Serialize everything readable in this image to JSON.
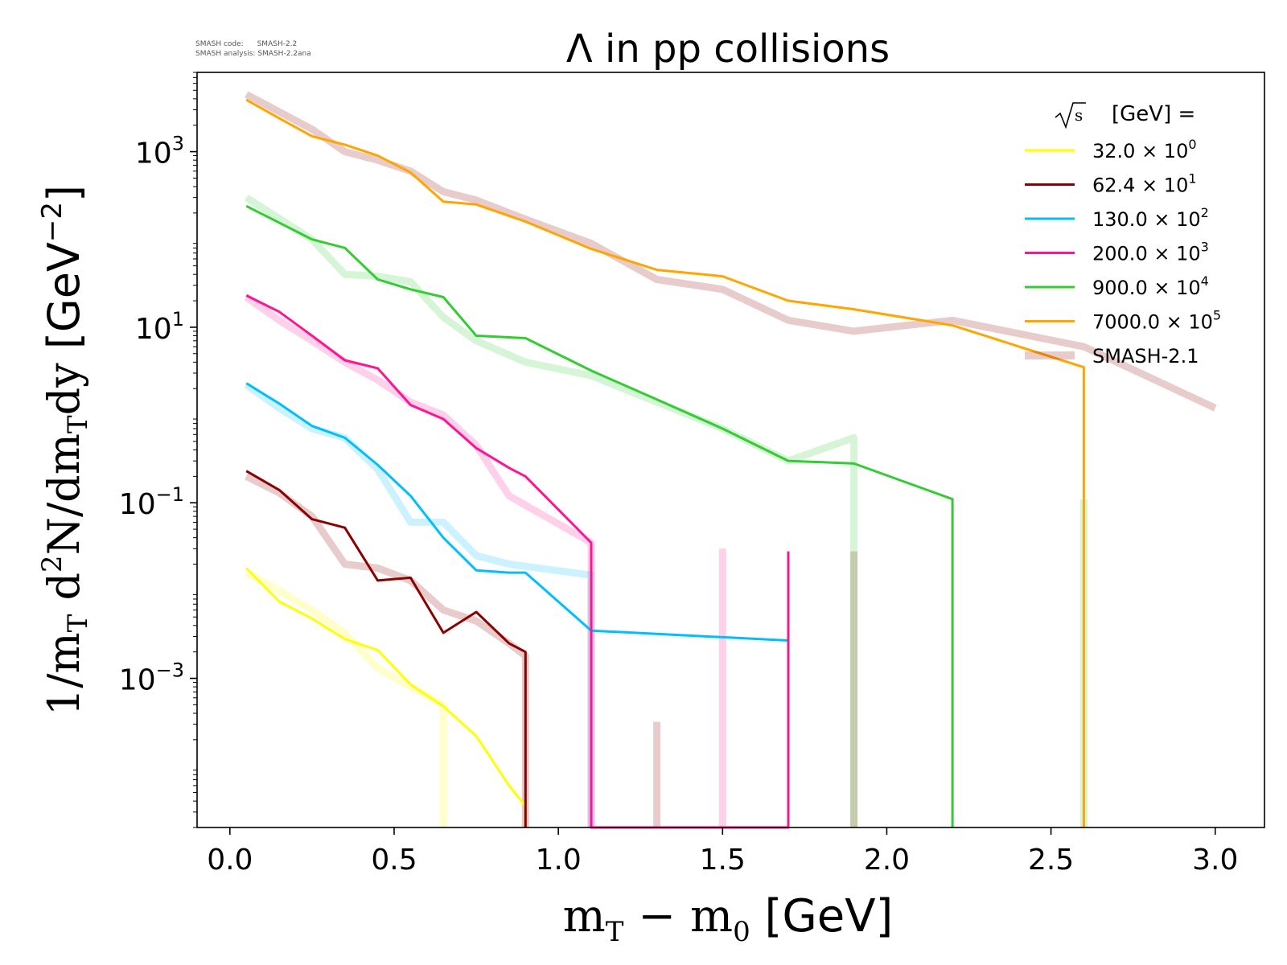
{
  "meta": {
    "code_label": "SMASH code:",
    "code_value": "SMASH-2.2",
    "analysis_label": "SMASH analysis:",
    "analysis_value": "SMASH-2.2ana"
  },
  "chart_data": {
    "type": "line",
    "title": "Λ in pp collisions",
    "xlabel": "m_T − m_0 [GeV]",
    "ylabel": "1/m_T d²N/dm_T dy [GeV⁻²]",
    "xlim": [
      -0.1,
      3.15
    ],
    "ylim": [
      2e-05,
      8000
    ],
    "yscale": "log",
    "xticks": [
      0.0,
      0.5,
      1.0,
      1.5,
      2.0,
      2.5,
      3.0
    ],
    "xtick_labels": [
      "0.0",
      "0.5",
      "1.0",
      "1.5",
      "2.0",
      "2.5",
      "3.0"
    ],
    "yticks": [
      0.001,
      0.1,
      10,
      1000
    ],
    "ytick_labels": [
      {
        "base": "10",
        "exp": "−3"
      },
      {
        "base": "10",
        "exp": "−1"
      },
      {
        "base": "10",
        "exp": "1"
      },
      {
        "base": "10",
        "exp": "3"
      }
    ],
    "grid": false,
    "legend_position": "top-right",
    "legend_title": "[GeV] =",
    "series": [
      {
        "name": "32.0 × 10^0",
        "color": "#ffff00",
        "x": [
          0.05,
          0.15,
          0.25,
          0.35,
          0.45,
          0.55,
          0.65,
          0.75,
          0.85,
          0.9,
          0.9
        ],
        "y": [
          0.018,
          0.0075,
          0.0048,
          0.0028,
          0.0021,
          0.00085,
          0.00048,
          0.00022,
          6e-05,
          3.5e-05,
          1e-05
        ]
      },
      {
        "name": "62.4 × 10^1",
        "color": "#8b0000",
        "x": [
          0.05,
          0.15,
          0.25,
          0.35,
          0.45,
          0.55,
          0.65,
          0.75,
          0.85,
          0.9,
          0.9
        ],
        "y": [
          0.23,
          0.14,
          0.065,
          0.052,
          0.013,
          0.014,
          0.0033,
          0.0057,
          0.0025,
          0.002,
          1e-05
        ]
      },
      {
        "name": "130.0 × 10^2",
        "color": "#00bfff",
        "x": [
          0.05,
          0.15,
          0.25,
          0.35,
          0.45,
          0.55,
          0.65,
          0.75,
          0.85,
          0.9,
          1.1,
          1.7
        ],
        "y": [
          2.3,
          1.35,
          0.75,
          0.55,
          0.27,
          0.12,
          0.04,
          0.017,
          0.016,
          0.016,
          0.0035,
          0.0027
        ]
      },
      {
        "name": "200.0 × 10^3",
        "color": "#ff1493",
        "x": [
          0.05,
          0.15,
          0.25,
          0.35,
          0.45,
          0.55,
          0.65,
          0.75,
          0.85,
          0.9,
          1.1,
          1.1,
          1.7,
          1.7
        ],
        "y": [
          23,
          15,
          8,
          4.2,
          3.4,
          1.3,
          0.9,
          0.42,
          0.25,
          0.2,
          0.035,
          1e-05,
          1e-05,
          0.028
        ]
      },
      {
        "name": "900.0 × 10^4",
        "color": "#32cd32",
        "x": [
          0.05,
          0.25,
          0.35,
          0.45,
          0.55,
          0.65,
          0.75,
          0.9,
          1.1,
          1.3,
          1.5,
          1.7,
          1.9,
          2.2,
          2.2
        ],
        "y": [
          240,
          100,
          80,
          35,
          27,
          22,
          8,
          7.5,
          3.2,
          1.5,
          0.7,
          0.3,
          0.28,
          0.11,
          1e-05
        ]
      },
      {
        "name": "7000.0 × 10^5",
        "color": "#ffa500",
        "x": [
          0.05,
          0.15,
          0.25,
          0.35,
          0.45,
          0.55,
          0.65,
          0.75,
          0.9,
          1.1,
          1.3,
          1.5,
          1.7,
          1.9,
          2.2,
          2.6,
          2.6
        ],
        "y": [
          3900,
          2400,
          1500,
          1200,
          900,
          580,
          270,
          250,
          160,
          78,
          45,
          38,
          20,
          16,
          10.5,
          3.5,
          1e-05
        ]
      }
    ],
    "reference": {
      "name": "SMASH-2.1",
      "opacity": 0.2,
      "lines": [
        {
          "color": "#ffff00",
          "x": [
            0.05,
            0.15,
            0.25,
            0.35,
            0.45,
            0.55,
            0.65,
            0.65
          ],
          "y": [
            0.016,
            0.01,
            0.006,
            0.0033,
            0.0013,
            0.0008,
            0.0005,
            1e-05
          ]
        },
        {
          "color": "#8b0000",
          "x": [
            0.05,
            0.15,
            0.25,
            0.35,
            0.45,
            0.55,
            0.65,
            0.75,
            0.85,
            0.9,
            0.9
          ],
          "y": [
            0.2,
            0.13,
            0.07,
            0.02,
            0.018,
            0.013,
            0.006,
            0.0045,
            0.0025,
            0.0018,
            1e-05
          ]
        },
        {
          "color": "#8b0000",
          "x": [
            1.3,
            1.3
          ],
          "y": [
            1e-05,
            0.00032
          ]
        },
        {
          "color": "#8b0000",
          "x": [
            1.9,
            1.9
          ],
          "y": [
            1e-05,
            0.028
          ]
        },
        {
          "color": "#00bfff",
          "x": [
            0.05,
            0.15,
            0.25,
            0.35,
            0.45,
            0.55,
            0.65,
            0.75,
            0.85,
            1.1,
            1.1
          ],
          "y": [
            2.2,
            1.2,
            0.7,
            0.55,
            0.24,
            0.06,
            0.06,
            0.025,
            0.02,
            0.015,
            1e-05
          ]
        },
        {
          "color": "#ff1493",
          "x": [
            0.05,
            0.15,
            0.25,
            0.35,
            0.45,
            0.55,
            0.65,
            0.75,
            0.85,
            1.05,
            1.1,
            1.1
          ],
          "y": [
            22,
            12,
            7,
            4,
            2.5,
            1.4,
            1.0,
            0.45,
            0.12,
            0.045,
            0.035,
            1e-05
          ]
        },
        {
          "color": "#ff1493",
          "x": [
            1.5,
            1.5
          ],
          "y": [
            1e-05,
            0.03
          ]
        },
        {
          "color": "#32cd32",
          "x": [
            0.05,
            0.25,
            0.35,
            0.45,
            0.55,
            0.65,
            0.75,
            0.9,
            1.1,
            1.3,
            1.5,
            1.7,
            1.9,
            1.9
          ],
          "y": [
            300,
            100,
            40,
            38,
            33,
            13,
            7,
            4,
            2.8,
            1.4,
            0.7,
            0.3,
            0.55,
            1e-05
          ]
        },
        {
          "color": "#32cd32",
          "x": [
            2.6,
            2.6
          ],
          "y": [
            1e-05,
            0.11
          ]
        },
        {
          "color": "#8b0000",
          "x": [
            0.05,
            0.25,
            0.35,
            0.45,
            0.55,
            0.65,
            0.75,
            0.9,
            1.1,
            1.3,
            1.5,
            1.7,
            1.9,
            2.2,
            2.6,
            3.0
          ],
          "y": [
            4500,
            1800,
            1000,
            800,
            600,
            350,
            280,
            170,
            90,
            35,
            27,
            12,
            9,
            12,
            6,
            1.2
          ]
        }
      ]
    }
  }
}
